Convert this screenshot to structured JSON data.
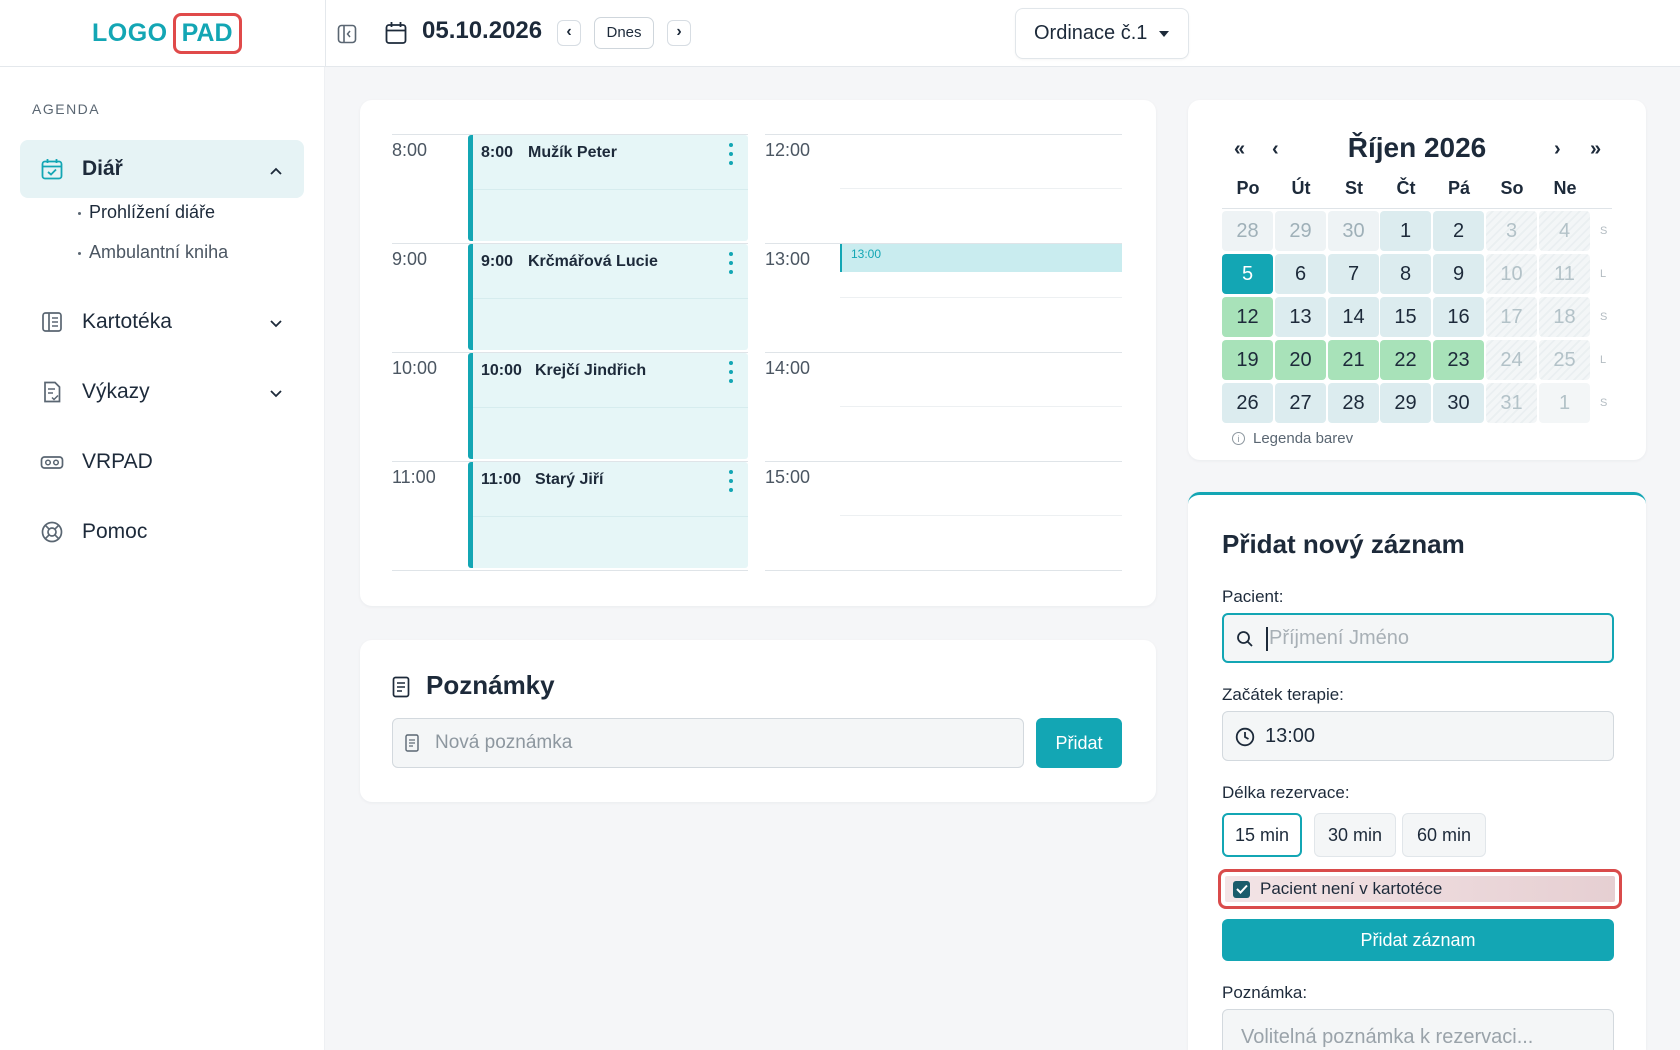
{
  "header": {
    "logo_a": "LOGO",
    "logo_b": "PAD",
    "date": "05.10.2026",
    "today_label": "Dnes",
    "clinic": "Ordinace č.1"
  },
  "sidebar": {
    "section_label": "AGENDA",
    "items": [
      {
        "label": "Diář",
        "icon": "calendar-icon",
        "expanded": true
      },
      {
        "label": "Kartotéka",
        "icon": "file-cabinet-icon"
      },
      {
        "label": "Výkazy",
        "icon": "report-icon"
      },
      {
        "label": "VRPAD",
        "icon": "vr-headset-icon"
      },
      {
        "label": "Pomoc",
        "icon": "lifebuoy-icon"
      }
    ],
    "sub_items": [
      "Prohlížení diáře",
      "Ambulantní kniha"
    ]
  },
  "schedule": {
    "left_times": [
      "8:00",
      "9:00",
      "10:00",
      "11:00"
    ],
    "right_times": [
      "12:00",
      "13:00",
      "14:00",
      "15:00"
    ],
    "appointments": [
      {
        "time": "8:00",
        "name": "Mužík Peter"
      },
      {
        "time": "9:00",
        "name": "Krčmářová Lucie"
      },
      {
        "time": "10:00",
        "name": "Krejčí Jindřich"
      },
      {
        "time": "11:00",
        "name": "Starý Jiří"
      }
    ],
    "selected_slot": "13:00"
  },
  "notes": {
    "title": "Poznámky",
    "placeholder": "Nová poznámka",
    "add_label": "Přidat"
  },
  "calendar": {
    "title": "Říjen 2026",
    "nav_prev_year": "«",
    "nav_prev": "‹",
    "nav_next": "›",
    "nav_next_year": "»",
    "weekdays": [
      "Po",
      "Út",
      "St",
      "Čt",
      "Pá",
      "So",
      "Ne"
    ],
    "weeks": [
      [
        "28",
        "29",
        "30",
        "1",
        "2",
        "3",
        "4"
      ],
      [
        "5",
        "6",
        "7",
        "8",
        "9",
        "10",
        "11"
      ],
      [
        "12",
        "13",
        "14",
        "15",
        "16",
        "17",
        "18"
      ],
      [
        "19",
        "20",
        "21",
        "22",
        "23",
        "24",
        "25"
      ],
      [
        "26",
        "27",
        "28",
        "29",
        "30",
        "31",
        "1"
      ]
    ],
    "week_markers": [
      "S",
      "L",
      "S",
      "L",
      "S"
    ],
    "legend_label": "Legenda barev"
  },
  "form": {
    "title": "Přidat nový záznam",
    "patient_label": "Pacient:",
    "patient_placeholder": "Příjmení Jméno",
    "start_label": "Začátek terapie:",
    "start_value": "13:00",
    "duration_label": "Délka rezervace:",
    "durations": [
      "15 min",
      "30 min",
      "60 min"
    ],
    "selected_duration": "15 min",
    "checkbox_label": "Pacient není v kartotéce",
    "checkbox_checked": true,
    "submit_label": "Přidat záznam",
    "note_label": "Poznámka:",
    "note_placeholder": "Volitelná poznámka k rezervaci..."
  },
  "colors": {
    "accent": "#13a6b4",
    "highlight_red": "#d94b4b",
    "green_day": "#a8e2b9"
  }
}
